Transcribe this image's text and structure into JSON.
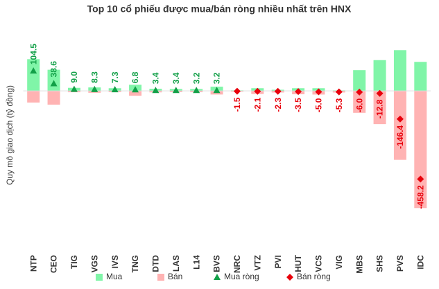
{
  "chart_data": {
    "type": "bar",
    "title": "Top 10 cổ phiếu được mua/bán ròng nhiều nhất trên HNX",
    "y_label": "Quy mô giao dịch (tỷ đồng)",
    "categories": [
      "NTP",
      "CEO",
      "TIG",
      "VGS",
      "IVS",
      "TNG",
      "DTD",
      "LAS",
      "L14",
      "BVS",
      "NRC",
      "VTZ",
      "PVI",
      "HUT",
      "VCS",
      "VIG",
      "MBS",
      "SHS",
      "PVS",
      "IDC"
    ],
    "ylim": [
      -720,
      260
    ],
    "series": [
      {
        "name": "Mua",
        "kind": "bar",
        "color": "#80f5a8",
        "values": [
          165,
          110,
          16,
          18,
          14,
          32,
          11,
          10,
          10,
          22,
          3,
          14,
          6,
          14,
          14,
          3,
          108,
          160,
          212,
          151
        ]
      },
      {
        "name": "Bán",
        "kind": "bar",
        "color": "#ffb3b3",
        "values": [
          -60.5,
          -71.4,
          -7,
          -9.7,
          -6.7,
          -25.2,
          -7.6,
          -6.6,
          -6.8,
          -18.8,
          -4.5,
          -16.1,
          -8.3,
          -17.5,
          -19,
          -8.3,
          -114,
          -172.8,
          -358.4,
          -609.2
        ]
      },
      {
        "name": "Mua ròng",
        "kind": "triangle",
        "color": "#12a048",
        "values": [
          104.5,
          38.6,
          9.0,
          8.3,
          7.3,
          6.8,
          3.4,
          3.4,
          3.2,
          3.2,
          null,
          null,
          null,
          null,
          null,
          null,
          null,
          null,
          null,
          null
        ],
        "value_labels": [
          "104.5",
          "38.6",
          "9.0",
          "8.3",
          "7.3",
          "6.8",
          "3.4",
          "3.4",
          "3.2",
          "3.2",
          null,
          null,
          null,
          null,
          null,
          null,
          null,
          null,
          null,
          null
        ]
      },
      {
        "name": "Bán ròng",
        "kind": "diamond",
        "color": "#e8000b",
        "values": [
          null,
          null,
          null,
          null,
          null,
          null,
          null,
          null,
          null,
          null,
          -1.5,
          -2.1,
          -2.3,
          -3.5,
          -5.0,
          -5.3,
          -6.0,
          -12.8,
          -146.4,
          -458.2
        ],
        "value_labels": [
          null,
          null,
          null,
          null,
          null,
          null,
          null,
          null,
          null,
          null,
          "-1.5",
          "-2.1",
          "-2.3",
          "-3.5",
          "-5.0",
          "-5.3",
          "-6.0",
          "-12.8",
          "-146.4",
          "-458.2"
        ]
      }
    ]
  }
}
